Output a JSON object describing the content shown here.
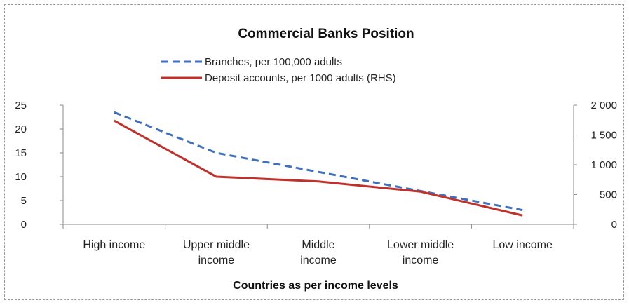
{
  "chart_data": {
    "type": "line",
    "title": "Commercial Banks Position",
    "xlabel": "Countries as per income levels",
    "categories": [
      [
        "High income"
      ],
      [
        "Upper middle",
        "income"
      ],
      [
        "Middle",
        "income"
      ],
      [
        "Lower middle",
        "income"
      ],
      [
        "Low income"
      ]
    ],
    "y_left": {
      "ticks": [
        "0",
        "5",
        "10",
        "15",
        "20",
        "25"
      ],
      "ylim": [
        0,
        25
      ]
    },
    "y_right": {
      "ticks": [
        "0",
        "500",
        "1 000",
        "1 500",
        "2 000"
      ],
      "ylim": [
        0,
        2000
      ]
    },
    "series": [
      {
        "name": "Branches, per 100,000 adults",
        "axis": "left",
        "style": "dashed",
        "color": "#3f6fbf",
        "values": [
          23.5,
          15,
          11,
          7,
          3
        ]
      },
      {
        "name": "Deposit accounts, per 1000 adults (RHS)",
        "axis": "right",
        "style": "solid",
        "color": "#c0312b",
        "values": [
          1740,
          800,
          720,
          550,
          150
        ]
      }
    ],
    "grid": false,
    "legend_position": "top-center"
  }
}
